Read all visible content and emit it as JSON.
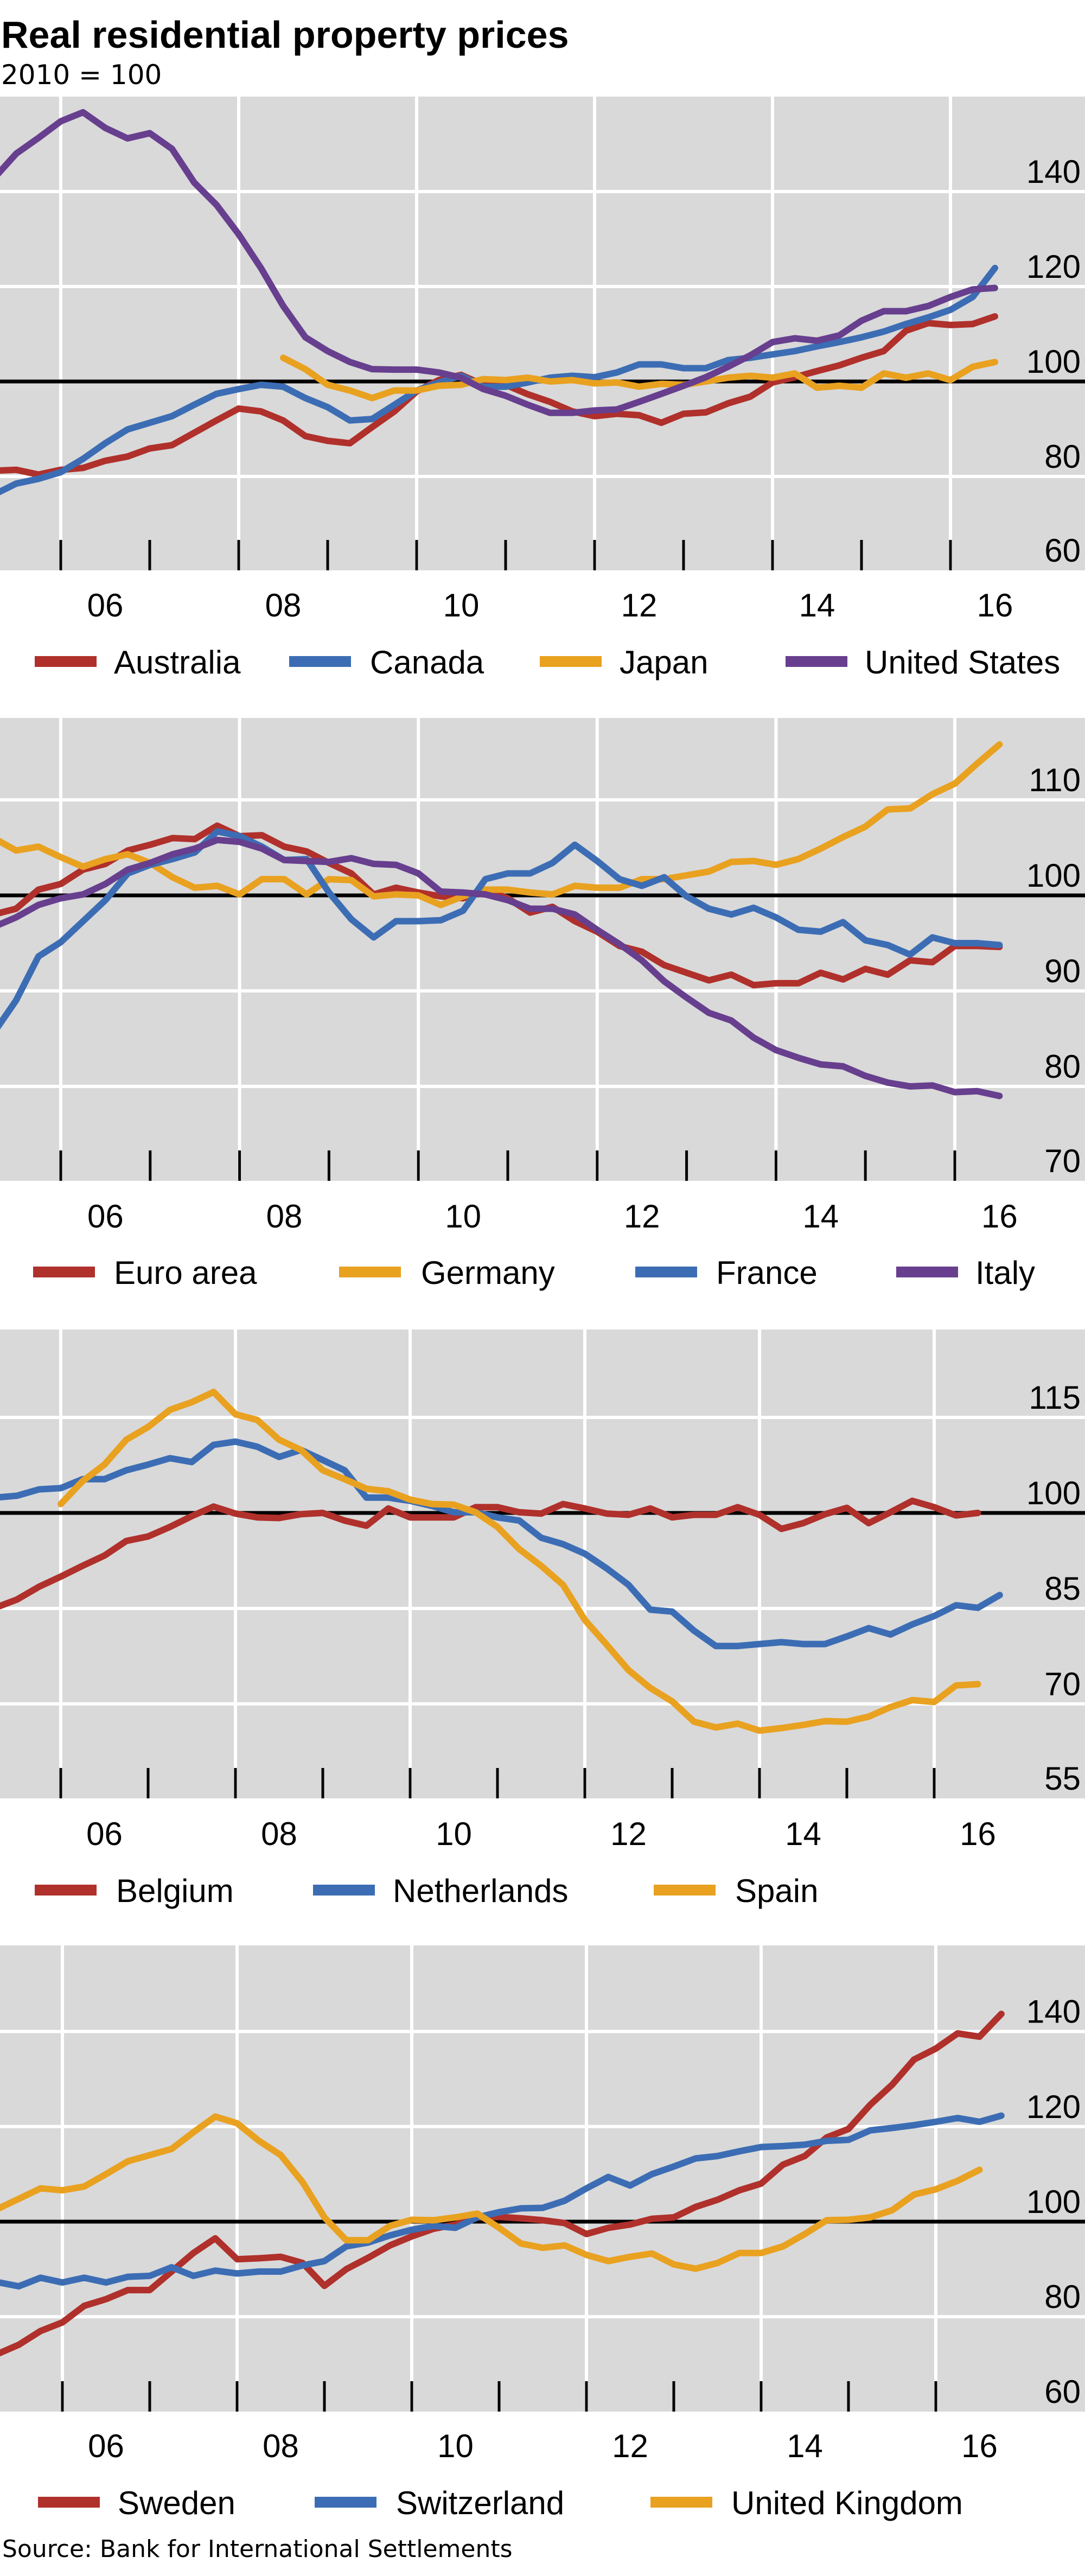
{
  "title": "Real residential property prices",
  "subtitle": "2010 = 100",
  "source": "Source: Bank for International Settlements",
  "chart_data": [
    {
      "type": "line",
      "ylim": [
        60,
        160
      ],
      "xlim": [
        2005.3,
        2017.5
      ],
      "yticks": [
        140,
        120,
        100,
        80,
        60
      ],
      "reference_line": 100,
      "xtick_labels": [
        "06",
        "08",
        "10",
        "12",
        "14",
        "16"
      ],
      "xtick_years": [
        2006,
        2008,
        2010,
        2012,
        2014,
        2016
      ],
      "legend_position": "bottom",
      "frequency": "quarterly",
      "series": [
        {
          "name": "Australia",
          "color": "#b0302b",
          "start": 2005.25,
          "values": [
            81.2,
            81.4,
            80.4,
            81.4,
            81.8,
            83.3,
            84.2,
            85.9,
            86.6,
            89.2,
            91.8,
            94.3,
            93.7,
            91.8,
            88.5,
            87.5,
            87.0,
            90.4,
            93.7,
            97.9,
            100.3,
            101.4,
            99.3,
            99.3,
            97.3,
            95.7,
            93.7,
            92.7,
            93.2,
            92.9,
            91.3,
            93.2,
            93.5,
            95.4,
            96.8,
            99.8,
            100.9,
            102.2,
            103.4,
            105.0,
            106.4,
            110.7,
            112.3,
            111.9,
            112.1,
            113.7
          ]
        },
        {
          "name": "Canada",
          "color": "#3c6db4",
          "start": 2005.25,
          "values": [
            76.2,
            78.5,
            79.5,
            80.9,
            83.7,
            87.0,
            89.9,
            91.3,
            92.7,
            95.1,
            97.4,
            98.4,
            99.3,
            98.9,
            96.5,
            94.6,
            91.8,
            92.1,
            95.1,
            98.1,
            99.8,
            101.2,
            98.9,
            98.9,
            99.8,
            100.8,
            101.2,
            100.9,
            101.9,
            103.6,
            103.6,
            102.8,
            102.8,
            104.5,
            105.0,
            105.7,
            106.4,
            107.4,
            108.3,
            109.3,
            110.5,
            112.1,
            113.5,
            115.1,
            117.8,
            123.9
          ]
        },
        {
          "name": "Japan",
          "color": "#e9a120",
          "start": 2008.5,
          "values": [
            105.0,
            102.6,
            99.3,
            98.1,
            96.5,
            98.1,
            98.1,
            99.1,
            99.3,
            100.5,
            100.3,
            100.8,
            100.0,
            100.3,
            99.6,
            99.8,
            98.9,
            99.5,
            99.3,
            100.0,
            100.8,
            101.2,
            100.8,
            101.7,
            98.7,
            99.1,
            98.7,
            101.7,
            100.8,
            101.7,
            100.3,
            103.1,
            104.1
          ]
        },
        {
          "name": "United States",
          "color": "#673f8e",
          "start": 2005.25,
          "values": [
            142.8,
            148.0,
            151.3,
            154.8,
            156.7,
            153.4,
            151.2,
            152.3,
            149.0,
            141.9,
            137.2,
            131.0,
            123.9,
            115.9,
            109.3,
            106.4,
            104.1,
            102.6,
            102.5,
            102.5,
            101.9,
            100.8,
            98.4,
            97.0,
            95.1,
            93.4,
            93.4,
            93.9,
            94.1,
            95.7,
            97.4,
            99.1,
            100.9,
            103.1,
            105.5,
            108.3,
            109.1,
            108.6,
            109.7,
            112.8,
            114.8,
            114.8,
            115.9,
            117.8,
            119.4,
            119.7
          ]
        }
      ]
    },
    {
      "type": "line",
      "ylim": [
        70,
        115
      ],
      "xlim": [
        2005.3,
        2017.5
      ],
      "yticks": [
        110,
        100,
        90,
        80,
        70
      ],
      "reference_line": 100,
      "xtick_labels": [
        "06",
        "08",
        "10",
        "12",
        "14",
        "16"
      ],
      "xtick_years": [
        2006,
        2008,
        2010,
        2012,
        2014,
        2016
      ],
      "legend_position": "bottom",
      "frequency": "quarterly",
      "series": [
        {
          "name": "Euro area",
          "color": "#b0302b",
          "start": 2005.25,
          "values": [
            98.0,
            98.6,
            100.6,
            101.2,
            102.7,
            103.3,
            104.7,
            105.3,
            106.0,
            105.9,
            107.3,
            106.2,
            106.3,
            105.1,
            104.6,
            103.4,
            102.3,
            100.1,
            100.8,
            100.3,
            99.9,
            99.7,
            100.6,
            99.7,
            98.2,
            98.8,
            97.3,
            96.2,
            94.7,
            94.1,
            92.7,
            91.9,
            91.1,
            91.7,
            90.6,
            90.8,
            90.8,
            91.9,
            91.2,
            92.3,
            91.7,
            93.2,
            93.0,
            94.7,
            94.7,
            94.6
          ]
        },
        {
          "name": "Germany",
          "color": "#e9a120",
          "start": 2005.25,
          "values": [
            106.0,
            104.7,
            105.1,
            104.0,
            103.0,
            103.8,
            104.3,
            103.4,
            101.9,
            100.8,
            101.0,
            100.1,
            101.7,
            101.7,
            100.1,
            101.7,
            101.6,
            99.9,
            100.1,
            100.0,
            99.0,
            99.9,
            100.6,
            100.6,
            100.3,
            100.1,
            101.0,
            100.8,
            100.8,
            101.7,
            101.7,
            102.1,
            102.5,
            103.5,
            103.6,
            103.2,
            103.8,
            104.9,
            106.1,
            107.2,
            109.0,
            109.1,
            110.6,
            111.7,
            113.8,
            115.8
          ]
        },
        {
          "name": "France",
          "color": "#3c6db4",
          "start": 2005.25,
          "values": [
            85.6,
            89.0,
            93.6,
            95.1,
            97.3,
            99.5,
            102.3,
            103.2,
            103.8,
            104.5,
            106.7,
            106.2,
            105.1,
            103.7,
            103.8,
            100.3,
            97.5,
            95.6,
            97.3,
            97.3,
            97.4,
            98.4,
            101.7,
            102.3,
            102.3,
            103.4,
            105.3,
            103.6,
            101.7,
            101.0,
            101.9,
            99.9,
            98.6,
            98.0,
            98.7,
            97.7,
            96.4,
            96.2,
            97.2,
            95.3,
            94.8,
            93.8,
            95.6,
            95.0,
            95.0,
            94.8
          ]
        },
        {
          "name": "Italy",
          "color": "#673f8e",
          "start": 2005.25,
          "values": [
            96.7,
            97.7,
            99.0,
            99.7,
            100.1,
            101.2,
            102.7,
            103.4,
            104.3,
            104.9,
            105.8,
            105.6,
            104.9,
            103.7,
            103.6,
            103.5,
            103.9,
            103.3,
            103.2,
            102.3,
            100.4,
            100.3,
            100.1,
            99.5,
            98.6,
            98.6,
            98.0,
            96.4,
            94.9,
            93.2,
            91.0,
            89.3,
            87.7,
            86.9,
            85.1,
            83.8,
            83.0,
            82.3,
            82.1,
            81.1,
            80.4,
            80.0,
            80.1,
            79.4,
            79.5,
            79.0
          ]
        }
      ]
    },
    {
      "type": "line",
      "ylim": [
        55,
        120
      ],
      "xlim": [
        2005.3,
        2017.5
      ],
      "yticks": [
        115,
        100,
        85,
        70,
        55
      ],
      "reference_line": 100,
      "xtick_labels": [
        "06",
        "08",
        "10",
        "12",
        "14",
        "16"
      ],
      "xtick_years": [
        2006,
        2008,
        2010,
        2012,
        2014,
        2016
      ],
      "legend_position": "bottom",
      "frequency": "quarterly",
      "series": [
        {
          "name": "Belgium",
          "color": "#b0302b",
          "start": 2005.25,
          "values": [
            85.1,
            86.4,
            88.4,
            90.0,
            91.7,
            93.3,
            95.6,
            96.3,
            97.8,
            99.5,
            101.0,
            99.9,
            99.3,
            99.2,
            99.8,
            100.0,
            98.8,
            98.0,
            100.7,
            99.3,
            99.3,
            99.3,
            100.9,
            100.9,
            100.1,
            99.9,
            101.4,
            100.7,
            99.9,
            99.7,
            100.7,
            99.3,
            99.7,
            99.7,
            100.9,
            99.7,
            97.5,
            98.4,
            99.8,
            100.8,
            98.4,
            100.1,
            101.9,
            100.9,
            99.6,
            100.0
          ]
        },
        {
          "name": "Netherlands",
          "color": "#3c6db4",
          "start": 2005.25,
          "values": [
            102.4,
            102.7,
            103.7,
            103.9,
            105.3,
            105.3,
            106.7,
            107.6,
            108.6,
            108.0,
            110.7,
            111.2,
            110.4,
            108.8,
            109.9,
            108.3,
            106.7,
            102.4,
            102.4,
            101.9,
            101.1,
            100.1,
            100.1,
            99.3,
            98.8,
            96.1,
            95.1,
            93.6,
            91.3,
            88.7,
            84.8,
            84.5,
            81.5,
            79.1,
            79.1,
            79.4,
            79.7,
            79.4,
            79.4,
            80.6,
            81.9,
            80.9,
            82.5,
            83.8,
            85.5,
            85.1,
            87.1
          ]
        },
        {
          "name": "Spain",
          "color": "#e9a120",
          "start": 2006.0,
          "values": [
            101.4,
            105.0,
            107.6,
            111.5,
            113.5,
            116.2,
            117.4,
            119.0,
            115.5,
            114.6,
            111.5,
            109.9,
            106.7,
            105.3,
            103.8,
            103.4,
            102.1,
            101.4,
            101.3,
            100.1,
            97.8,
            94.3,
            91.7,
            88.7,
            83.2,
            79.3,
            75.3,
            72.5,
            70.4,
            67.2,
            66.3,
            66.9,
            65.8,
            66.2,
            66.7,
            67.3,
            67.2,
            68.0,
            69.5,
            70.6,
            70.3,
            72.9,
            73.1
          ]
        }
      ]
    },
    {
      "type": "line",
      "ylim": [
        60,
        160
      ],
      "xlim": [
        2005.3,
        2017.5
      ],
      "yticks": [
        140,
        120,
        100,
        80,
        60
      ],
      "reference_line": 100,
      "xtick_labels": [
        "06",
        "08",
        "10",
        "12",
        "14",
        "16"
      ],
      "xtick_years": [
        2006,
        2008,
        2010,
        2012,
        2014,
        2016
      ],
      "legend_position": "bottom",
      "frequency": "quarterly",
      "series": [
        {
          "name": "Sweden",
          "color": "#b0302b",
          "start": 2005.25,
          "values": [
            72.1,
            74.1,
            77.0,
            78.8,
            82.3,
            83.7,
            85.6,
            85.6,
            89.5,
            93.4,
            96.5,
            92.1,
            92.3,
            92.6,
            91.3,
            86.5,
            90.0,
            92.4,
            95.0,
            96.9,
            98.5,
            99.4,
            100.9,
            101.0,
            100.7,
            100.3,
            99.7,
            97.4,
            98.7,
            99.4,
            100.6,
            100.9,
            103.1,
            104.6,
            106.6,
            108.0,
            112.0,
            113.8,
            117.7,
            119.5,
            124.6,
            128.8,
            134.1,
            136.4,
            139.6,
            138.9,
            143.7
          ]
        },
        {
          "name": "Switzerland",
          "color": "#3c6db4",
          "start": 2005.25,
          "values": [
            87.3,
            86.4,
            88.2,
            87.2,
            88.2,
            87.2,
            88.4,
            88.6,
            90.4,
            88.6,
            89.7,
            89.1,
            89.5,
            89.5,
            90.8,
            91.7,
            94.8,
            95.6,
            97.1,
            98.3,
            99.1,
            98.7,
            100.9,
            102.0,
            102.8,
            102.9,
            104.4,
            107.0,
            109.4,
            107.6,
            110.0,
            111.6,
            113.3,
            113.8,
            114.8,
            115.7,
            115.9,
            116.2,
            117.0,
            117.2,
            119.2,
            119.7,
            120.3,
            121.0,
            121.8,
            121.0,
            122.3
          ]
        },
        {
          "name": "United Kingdom",
          "color": "#e9a120",
          "start": 2005.25,
          "values": [
            102.6,
            104.8,
            107.0,
            106.6,
            107.4,
            110.0,
            112.7,
            114.0,
            115.3,
            118.8,
            122.1,
            120.7,
            117.0,
            114.0,
            108.3,
            100.9,
            96.1,
            96.1,
            99.1,
            100.4,
            100.3,
            100.9,
            101.7,
            98.7,
            95.4,
            94.5,
            95.0,
            93.0,
            91.7,
            92.6,
            93.3,
            91.0,
            90.1,
            91.3,
            93.4,
            93.4,
            94.8,
            97.4,
            100.3,
            100.4,
            100.9,
            102.4,
            105.7,
            106.8,
            108.6,
            110.9
          ]
        }
      ]
    }
  ]
}
